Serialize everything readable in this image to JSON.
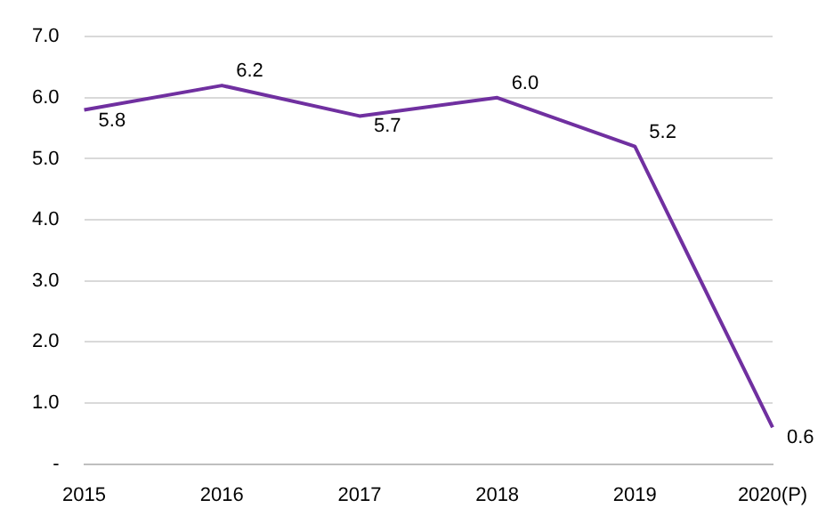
{
  "chart_data": {
    "type": "line",
    "categories": [
      "2015",
      "2016",
      "2017",
      "2018",
      "2019",
      "2020(P)"
    ],
    "series": [
      {
        "color": "#7030a0",
        "values": [
          5.8,
          6.2,
          5.7,
          6.0,
          5.2,
          0.6
        ],
        "value_labels": [
          "5.8",
          "6.2",
          "5.7",
          "6.0",
          "5.2",
          "0.6"
        ]
      }
    ],
    "ylim": [
      0,
      7
    ],
    "yticks": [
      {
        "value": 0,
        "label": "-"
      },
      {
        "value": 1,
        "label": "1.0"
      },
      {
        "value": 2,
        "label": "2.0"
      },
      {
        "value": 3,
        "label": "3.0"
      },
      {
        "value": 4,
        "label": "4.0"
      },
      {
        "value": 5,
        "label": "5.0"
      },
      {
        "value": 6,
        "label": "6.0"
      },
      {
        "value": 7,
        "label": "7.0"
      }
    ],
    "grid": "y",
    "legend": false,
    "marker": "none",
    "line_style": "solid"
  }
}
